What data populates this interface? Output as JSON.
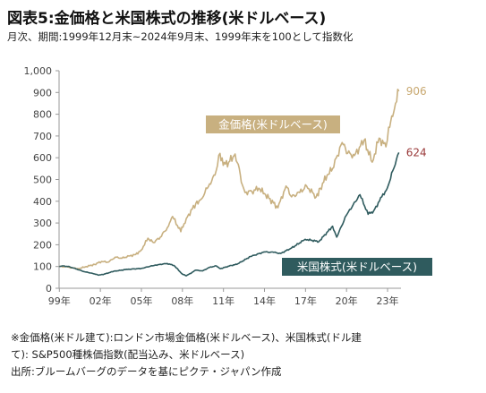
{
  "header": {
    "title": "図表5:金価格と米国株式の推移(米ドルベース)",
    "subtitle": "月次、期間:1999年12月末~2024年9月末、1999年末を100として指数化"
  },
  "footnotes": [
    "※金価格(米ドル建て):ロンドン市場金価格(米ドルベース)、米国株式(ドル建",
    "て): S&P500種株価指数(配当込み、米ドルベース)",
    "出所:ブルームバーグのデータを基にピクテ・ジャパン作成"
  ],
  "colors": {
    "gold": "#c8b080",
    "stock": "#2f5b5e",
    "axis": "#999999",
    "grid": "#e0e0e0"
  },
  "chart_data": {
    "type": "line",
    "ylim": [
      0,
      1000
    ],
    "y_ticks": [
      "0",
      "100",
      "200",
      "300",
      "400",
      "500",
      "600",
      "700",
      "800",
      "900",
      "1,000"
    ],
    "x_tick_labels": [
      "99年",
      "02年",
      "05年",
      "08年",
      "11年",
      "14年",
      "17年",
      "20年",
      "23年"
    ],
    "x_tick_years": [
      1999,
      2002,
      2005,
      2008,
      2011,
      2014,
      2017,
      2020,
      2023
    ],
    "xlim": [
      1999.9,
      2024.9
    ],
    "series": [
      {
        "name": "金価格(米ドルベース)",
        "end_label": "906",
        "points": [
          [
            1999.92,
            100
          ],
          [
            2000.5,
            98
          ],
          [
            2001.0,
            92
          ],
          [
            2001.3,
            90
          ],
          [
            2001.8,
            98
          ],
          [
            2002.5,
            110
          ],
          [
            2003.0,
            123
          ],
          [
            2003.5,
            120
          ],
          [
            2004.0,
            143
          ],
          [
            2004.5,
            138
          ],
          [
            2005.0,
            148
          ],
          [
            2005.5,
            155
          ],
          [
            2005.9,
            175
          ],
          [
            2006.4,
            230
          ],
          [
            2006.8,
            210
          ],
          [
            2007.3,
            235
          ],
          [
            2007.9,
            285
          ],
          [
            2008.2,
            330
          ],
          [
            2008.8,
            260
          ],
          [
            2009.2,
            320
          ],
          [
            2009.9,
            390
          ],
          [
            2010.3,
            410
          ],
          [
            2010.9,
            480
          ],
          [
            2011.3,
            520
          ],
          [
            2011.67,
            620
          ],
          [
            2011.9,
            565
          ],
          [
            2012.3,
            580
          ],
          [
            2012.7,
            610
          ],
          [
            2013.0,
            570
          ],
          [
            2013.3,
            475
          ],
          [
            2013.5,
            440
          ],
          [
            2014.0,
            445
          ],
          [
            2014.5,
            460
          ],
          [
            2015.0,
            430
          ],
          [
            2015.9,
            370
          ],
          [
            2016.5,
            470
          ],
          [
            2016.9,
            420
          ],
          [
            2017.5,
            440
          ],
          [
            2018.0,
            470
          ],
          [
            2018.7,
            420
          ],
          [
            2019.0,
            460
          ],
          [
            2019.5,
            520
          ],
          [
            2019.9,
            550
          ],
          [
            2020.6,
            670
          ],
          [
            2021.0,
            620
          ],
          [
            2021.5,
            610
          ],
          [
            2022.2,
            680
          ],
          [
            2022.8,
            580
          ],
          [
            2023.3,
            690
          ],
          [
            2023.8,
            650
          ],
          [
            2024.0,
            740
          ],
          [
            2024.3,
            790
          ],
          [
            2024.5,
            850
          ],
          [
            2024.75,
            906
          ]
        ]
      },
      {
        "name": "米国株式(米ドルベース)",
        "end_label": "624",
        "points": [
          [
            1999.92,
            100
          ],
          [
            2000.2,
            103
          ],
          [
            2000.7,
            98
          ],
          [
            2001.2,
            88
          ],
          [
            2001.7,
            77
          ],
          [
            2002.5,
            66
          ],
          [
            2002.8,
            60
          ],
          [
            2003.2,
            65
          ],
          [
            2003.9,
            78
          ],
          [
            2004.9,
            87
          ],
          [
            2005.9,
            91
          ],
          [
            2006.9,
            106
          ],
          [
            2007.8,
            114
          ],
          [
            2008.3,
            105
          ],
          [
            2008.9,
            66
          ],
          [
            2009.2,
            57
          ],
          [
            2009.9,
            83
          ],
          [
            2010.4,
            80
          ],
          [
            2010.9,
            96
          ],
          [
            2011.4,
            103
          ],
          [
            2011.7,
            90
          ],
          [
            2012.5,
            105
          ],
          [
            2012.9,
            110
          ],
          [
            2013.9,
            146
          ],
          [
            2014.9,
            167
          ],
          [
            2015.6,
            165
          ],
          [
            2016.1,
            160
          ],
          [
            2016.9,
            185
          ],
          [
            2017.9,
            225
          ],
          [
            2018.9,
            215
          ],
          [
            2019.9,
            285
          ],
          [
            2020.2,
            235
          ],
          [
            2020.9,
            335
          ],
          [
            2021.9,
            430
          ],
          [
            2022.5,
            340
          ],
          [
            2022.9,
            355
          ],
          [
            2023.5,
            420
          ],
          [
            2023.9,
            460
          ],
          [
            2024.3,
            540
          ],
          [
            2024.75,
            624
          ]
        ]
      }
    ],
    "annotations": [
      {
        "series": 0,
        "text": "金価格(米ドルベース)"
      },
      {
        "series": 1,
        "text": "米国株式(米ドルベース)"
      }
    ]
  }
}
